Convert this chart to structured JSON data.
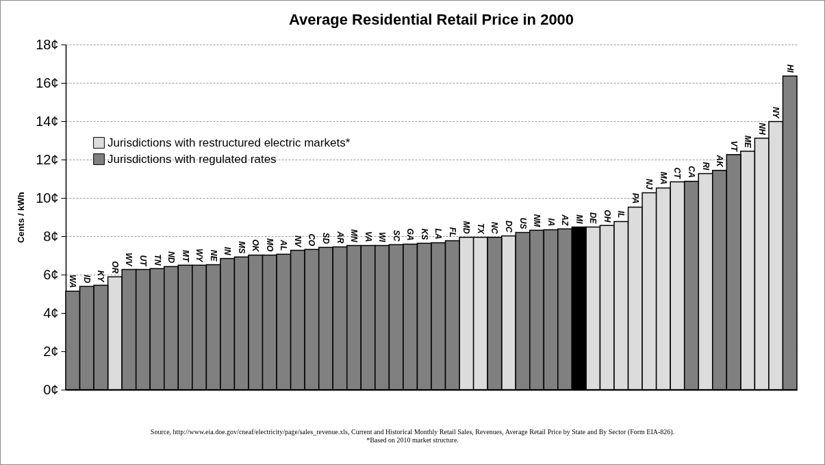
{
  "chart_data": {
    "type": "bar",
    "title": "Average Residential Retail Price in 2000",
    "ylabel": "Cents / kWh",
    "categories": [
      "WA",
      "ID",
      "KY",
      "OR",
      "WV",
      "UT",
      "TN",
      "ND",
      "MT",
      "WY",
      "NE",
      "IN",
      "MS",
      "OK",
      "MO",
      "AL",
      "NV",
      "CO",
      "SD",
      "AR",
      "MN",
      "VA",
      "WI",
      "SC",
      "GA",
      "KS",
      "LA",
      "FL",
      "MD",
      "TX",
      "NC",
      "DC",
      "US",
      "NM",
      "IA",
      "AZ",
      "MI",
      "DE",
      "OH",
      "IL",
      "PA",
      "NJ",
      "MA",
      "CT",
      "CA",
      "RI",
      "AK",
      "VT",
      "ME",
      "NH",
      "NY",
      "HI"
    ],
    "series": [
      {
        "name": "Jurisdictions with restructured electric markets*",
        "color": "#dcdcdc",
        "values": [
          null,
          null,
          null,
          5.88,
          null,
          null,
          null,
          null,
          null,
          null,
          null,
          null,
          null,
          null,
          null,
          null,
          null,
          null,
          null,
          null,
          null,
          null,
          null,
          null,
          null,
          null,
          null,
          null,
          7.95,
          7.95,
          null,
          8.02,
          null,
          null,
          null,
          null,
          null,
          8.48,
          8.56,
          8.77,
          9.52,
          10.27,
          10.52,
          10.84,
          null,
          11.27,
          null,
          null,
          12.44,
          13.12,
          13.98,
          null
        ]
      },
      {
        "name": "Jurisdictions with regulated rates",
        "color": "#808080",
        "values": [
          5.13,
          5.38,
          5.45,
          null,
          6.27,
          6.27,
          6.31,
          6.42,
          6.49,
          6.49,
          6.52,
          6.84,
          6.92,
          7.02,
          7.02,
          7.06,
          7.27,
          7.31,
          7.42,
          7.45,
          7.52,
          7.52,
          7.52,
          7.56,
          7.59,
          7.63,
          7.66,
          7.77,
          null,
          null,
          7.95,
          null,
          8.2,
          8.31,
          8.34,
          8.38,
          null,
          null,
          null,
          null,
          null,
          null,
          null,
          null,
          10.87,
          null,
          11.44,
          12.26,
          null,
          null,
          null,
          16.36
        ]
      },
      {
        "color": "#000000",
        "values": [
          null,
          null,
          null,
          null,
          null,
          null,
          null,
          null,
          null,
          null,
          null,
          null,
          null,
          null,
          null,
          null,
          null,
          null,
          null,
          null,
          null,
          null,
          null,
          null,
          null,
          null,
          null,
          null,
          null,
          null,
          null,
          null,
          null,
          null,
          null,
          null,
          8.48,
          null,
          null,
          null,
          null,
          null,
          null,
          null,
          null,
          null,
          null,
          null,
          null,
          null,
          null,
          null
        ]
      }
    ],
    "ylim": [
      0,
      18
    ],
    "yticks": [
      {
        "value": 0,
        "label": "0¢"
      },
      {
        "value": 2,
        "label": "2¢"
      },
      {
        "value": 4,
        "label": "4¢"
      },
      {
        "value": 6,
        "label": "6¢"
      },
      {
        "value": 8,
        "label": "8¢"
      },
      {
        "value": 10,
        "label": "10¢"
      },
      {
        "value": 12,
        "label": "12¢"
      },
      {
        "value": 14,
        "label": "14¢"
      },
      {
        "value": 16,
        "label": "16¢"
      },
      {
        "value": 18,
        "label": "18¢"
      }
    ],
    "grid": "y",
    "legend": "left",
    "tick_labels": "y",
    "annotations": [
      "Source, http://www.eia.doe.gov/cneaf/electricity/page/sales_revenue.xls,   Current and Historical Monthly Retail Sales, Revenues, Average Retail Price by State and By Sector (Form EIA-826).",
      "*Based on 2010 market structure."
    ]
  }
}
